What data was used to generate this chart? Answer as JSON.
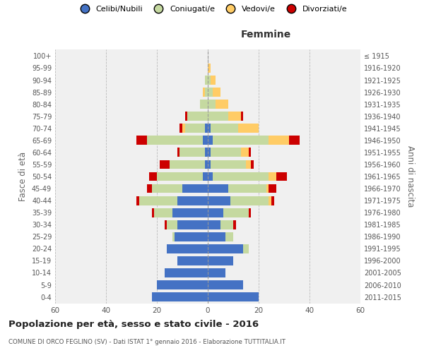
{
  "age_groups": [
    "0-4",
    "5-9",
    "10-14",
    "15-19",
    "20-24",
    "25-29",
    "30-34",
    "35-39",
    "40-44",
    "45-49",
    "50-54",
    "55-59",
    "60-64",
    "65-69",
    "70-74",
    "75-79",
    "80-84",
    "85-89",
    "90-94",
    "95-99",
    "100+"
  ],
  "birth_years": [
    "2011-2015",
    "2006-2010",
    "2001-2005",
    "1996-2000",
    "1991-1995",
    "1986-1990",
    "1981-1985",
    "1976-1980",
    "1971-1975",
    "1966-1970",
    "1961-1965",
    "1956-1960",
    "1951-1955",
    "1946-1950",
    "1941-1945",
    "1936-1940",
    "1931-1935",
    "1926-1930",
    "1921-1925",
    "1916-1920",
    "≤ 1915"
  ],
  "colors": {
    "celibi": "#4472C4",
    "coniugati": "#C5D9A0",
    "vedovi": "#FFCC66",
    "divorziati": "#CC0000"
  },
  "males": {
    "celibi": [
      22,
      20,
      17,
      12,
      16,
      13,
      12,
      14,
      12,
      10,
      2,
      1,
      1,
      2,
      1,
      0,
      0,
      0,
      0,
      0,
      0
    ],
    "coniugati": [
      0,
      0,
      0,
      0,
      0,
      1,
      4,
      7,
      15,
      12,
      18,
      14,
      10,
      22,
      8,
      8,
      3,
      1,
      1,
      0,
      0
    ],
    "vedovi": [
      0,
      0,
      0,
      0,
      0,
      0,
      0,
      0,
      0,
      0,
      0,
      0,
      0,
      0,
      1,
      0,
      0,
      1,
      0,
      0,
      0
    ],
    "divorziati": [
      0,
      0,
      0,
      0,
      0,
      0,
      1,
      1,
      1,
      2,
      3,
      4,
      1,
      4,
      1,
      1,
      0,
      0,
      0,
      0,
      0
    ]
  },
  "females": {
    "celibi": [
      20,
      14,
      7,
      10,
      14,
      7,
      5,
      6,
      9,
      8,
      2,
      1,
      1,
      2,
      1,
      0,
      0,
      0,
      0,
      0,
      0
    ],
    "coniugati": [
      0,
      0,
      0,
      0,
      2,
      3,
      5,
      10,
      15,
      15,
      22,
      14,
      12,
      22,
      11,
      8,
      3,
      2,
      1,
      0,
      0
    ],
    "vedovi": [
      0,
      0,
      0,
      0,
      0,
      0,
      0,
      0,
      1,
      1,
      3,
      2,
      3,
      8,
      8,
      5,
      5,
      3,
      2,
      1,
      0
    ],
    "divorziati": [
      0,
      0,
      0,
      0,
      0,
      0,
      1,
      1,
      1,
      3,
      4,
      1,
      1,
      4,
      0,
      1,
      0,
      0,
      0,
      0,
      0
    ]
  },
  "xlim": 60,
  "title": "Popolazione per età, sesso e stato civile - 2016",
  "subtitle": "COMUNE DI ORCO FEGLINO (SV) - Dati ISTAT 1° gennaio 2016 - Elaborazione TUTTITALIA.IT",
  "xlabel_right": "Femmine",
  "ylabel_left": "Fasce di età",
  "ylabel_right": "Anni di nascita",
  "legend_labels": [
    "Celibi/Nubili",
    "Coniugati/e",
    "Vedovi/e",
    "Divorziati/e"
  ],
  "bg_color": "#f0f0f0",
  "bar_height": 0.75
}
